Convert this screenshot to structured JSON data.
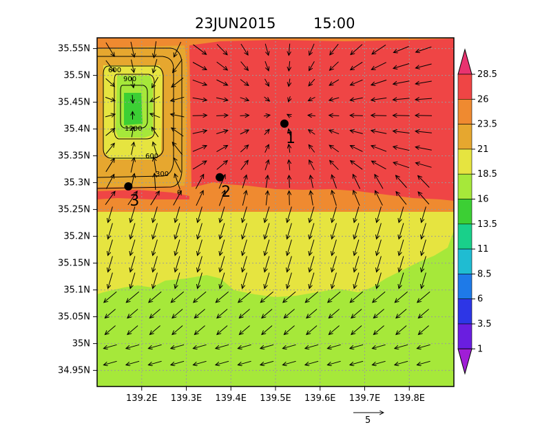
{
  "title": {
    "date": "23JUN2015",
    "time": "15:00"
  },
  "map": {
    "lon_range": [
      139.1,
      139.9
    ],
    "lat_range": [
      34.92,
      35.57
    ],
    "lon_ticks": [
      "139.2E",
      "139.3E",
      "139.4E",
      "139.5E",
      "139.6E",
      "139.7E",
      "139.8E"
    ],
    "lon_tick_values": [
      139.2,
      139.3,
      139.4,
      139.5,
      139.6,
      139.7,
      139.8
    ],
    "lat_ticks": [
      "35.55N",
      "35.5N",
      "35.45N",
      "35.4N",
      "35.35N",
      "35.3N",
      "35.25N",
      "35.2N",
      "35.15N",
      "35.1N",
      "35.05N",
      "35N",
      "34.95N"
    ],
    "lat_tick_values": [
      35.55,
      35.5,
      35.45,
      35.4,
      35.35,
      35.3,
      35.25,
      35.2,
      35.15,
      35.1,
      35.05,
      35.0,
      34.95
    ],
    "grid": true
  },
  "colorbar": {
    "labels": [
      "28.5",
      "26",
      "23.5",
      "21",
      "18.5",
      "16",
      "13.5",
      "11",
      "8.5",
      "6",
      "3.5",
      "1"
    ],
    "colors": [
      "#e8336f",
      "#ef4545",
      "#ef8a30",
      "#e6a72f",
      "#e6e440",
      "#a6e83a",
      "#3ccf34",
      "#19d08a",
      "#1fbcd2",
      "#1e7ae8",
      "#2d36e6",
      "#6a1ee0",
      "#a01ed6"
    ]
  },
  "terrain_contours": [
    "600",
    "900",
    "1200",
    "600",
    "300",
    "0"
  ],
  "sites": [
    {
      "label": "1",
      "lon": 139.52,
      "lat": 35.41
    },
    {
      "label": "2",
      "lon": 139.375,
      "lat": 35.31
    },
    {
      "label": "3",
      "lon": 139.17,
      "lat": 35.293
    }
  ],
  "reference_vector": {
    "label": "5"
  }
}
